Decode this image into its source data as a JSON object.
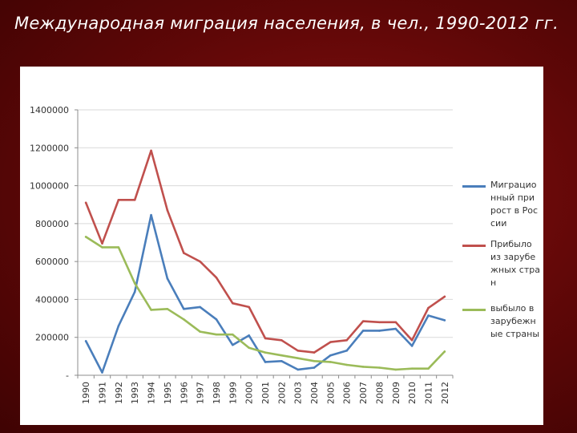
{
  "slide": {
    "title": "Международная миграция населения, в чел., 1990-2012 гг."
  },
  "colors": {
    "background": "#6b0a0a",
    "panel": "#ffffff",
    "grid": "#d9d9d9",
    "axis_text": "#333333"
  },
  "chart_data": {
    "type": "line",
    "title": "",
    "xlabel": "",
    "ylabel": "",
    "ylim": [
      0,
      1400000
    ],
    "yticks": [
      0,
      200000,
      400000,
      600000,
      800000,
      1000000,
      1200000,
      1400000
    ],
    "ytick_labels": [
      "-",
      "200000",
      "400000",
      "600000",
      "800000",
      "1000000",
      "1200000",
      "1400000"
    ],
    "grid": "horizontal",
    "legend_position": "right",
    "categories": [
      "1990",
      "1991",
      "1992",
      "1993",
      "1994",
      "1995",
      "1996",
      "1997",
      "1998",
      "1999",
      "2000",
      "2001",
      "2002",
      "2003",
      "2004",
      "2005",
      "2006",
      "2007",
      "2008",
      "2009",
      "2010",
      "2011",
      "2012"
    ],
    "series": [
      {
        "name": "Миграционный прирост в России",
        "color": "#4a7ebb",
        "values": [
          180000,
          15000,
          260000,
          440000,
          845000,
          510000,
          350000,
          360000,
          295000,
          160000,
          210000,
          70000,
          75000,
          30000,
          40000,
          105000,
          130000,
          235000,
          235000,
          245000,
          155000,
          315000,
          290000
        ]
      },
      {
        "name": "Прибыло из зарубежных стран",
        "color": "#c0504d",
        "values": [
          910000,
          695000,
          925000,
          925000,
          1185000,
          870000,
          645000,
          600000,
          515000,
          380000,
          360000,
          195000,
          185000,
          130000,
          120000,
          175000,
          185000,
          285000,
          280000,
          280000,
          185000,
          355000,
          415000
        ]
      },
      {
        "name": "выбыло в зарубежные страны",
        "color": "#9bbb59",
        "values": [
          730000,
          675000,
          675000,
          485000,
          345000,
          350000,
          295000,
          230000,
          215000,
          215000,
          145000,
          120000,
          105000,
          90000,
          75000,
          70000,
          55000,
          45000,
          40000,
          30000,
          35000,
          35000,
          125000
        ]
      }
    ]
  }
}
